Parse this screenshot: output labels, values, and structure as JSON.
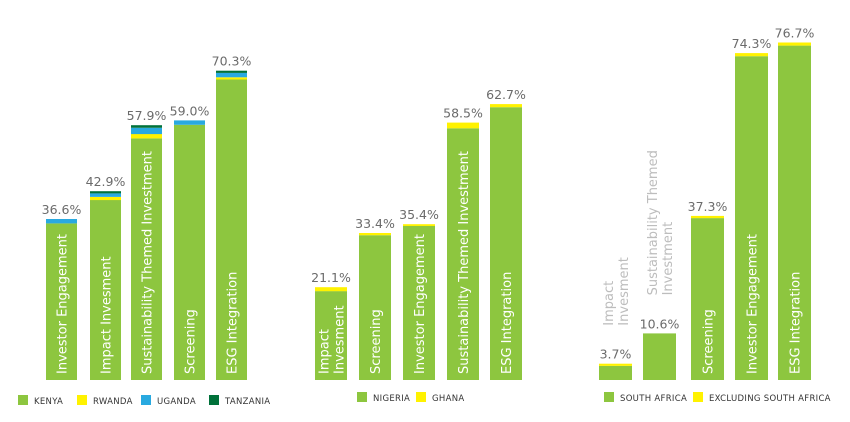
{
  "chart_data": [
    {
      "type": "bar",
      "stacked": true,
      "categories": [
        "Investor Engagement",
        "Impact Invesment",
        "Sustainability Themed Investment",
        "Screening",
        "ESG Integration"
      ],
      "totals": [
        "36.6%",
        "42.9%",
        "57.9%",
        "59.0%",
        "70.3%"
      ],
      "series": [
        {
          "name": "KENYA",
          "color": "#8dc63f",
          "values": [
            35.6,
            40.9,
            54.9,
            58.0,
            68.3
          ]
        },
        {
          "name": "RWANDA",
          "color": "#fff200",
          "values": [
            0.0,
            0.7,
            1.0,
            0.0,
            0.5
          ]
        },
        {
          "name": "UGANDA",
          "color": "#29a9e0",
          "values": [
            1.0,
            0.8,
            1.4,
            1.0,
            1.0
          ]
        },
        {
          "name": "TANZANIA",
          "color": "#00713a",
          "values": [
            0.0,
            0.5,
            0.6,
            0.0,
            0.5
          ]
        }
      ],
      "ylim": [
        0,
        80
      ]
    },
    {
      "type": "bar",
      "stacked": true,
      "categories": [
        "Impact Invesment",
        "Screening",
        "Investor Engagement",
        "Sustainability Themed Investment",
        "ESG Integration"
      ],
      "label_lines": [
        [
          "Impact",
          "Invesment"
        ],
        [
          "Screening"
        ],
        [
          "Investor Engagement"
        ],
        [
          "Sustainability Themed Investment"
        ],
        [
          "ESG Integration"
        ]
      ],
      "totals": [
        "21.1%",
        "33.4%",
        "35.4%",
        "58.5%",
        "62.7%"
      ],
      "series": [
        {
          "name": "NIGERIA",
          "color": "#8dc63f",
          "values": [
            20.2,
            32.9,
            35.0,
            57.2,
            62.0
          ]
        },
        {
          "name": "GHANA",
          "color": "#fff200",
          "values": [
            0.9,
            0.5,
            0.4,
            1.3,
            0.7
          ]
        }
      ],
      "ylim": [
        0,
        80
      ]
    },
    {
      "type": "bar",
      "stacked": true,
      "categories": [
        "Impact Invesment",
        "Sustainability Themed Investment",
        "Screening",
        "Investor Engagement",
        "ESG Integration"
      ],
      "label_lines": [
        [
          "Impact",
          "Invesment"
        ],
        [
          "Sustainability Themed",
          "Investment"
        ],
        [
          "Screening"
        ],
        [
          "Investor Engagement"
        ],
        [
          "ESG Integration"
        ]
      ],
      "totals": [
        "3.7%",
        "10.6%",
        "37.3%",
        "74.3%",
        "76.7%"
      ],
      "series": [
        {
          "name": "SOUTH AFRICA",
          "color": "#8dc63f",
          "values": [
            3.2,
            10.6,
            36.8,
            73.6,
            76.0
          ]
        },
        {
          "name": "EXCLUDING SOUTH AFRICA",
          "color": "#fff200",
          "values": [
            0.5,
            0.0,
            0.5,
            0.7,
            0.7
          ]
        }
      ],
      "ylim": [
        0,
        80
      ]
    }
  ]
}
